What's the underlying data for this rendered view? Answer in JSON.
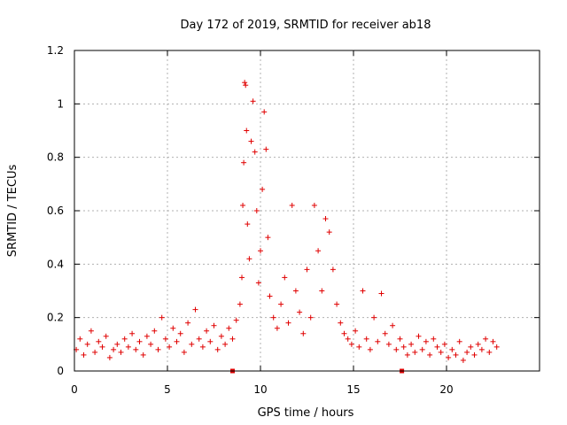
{
  "chart_data": {
    "type": "scatter",
    "title": "Day 172 of 2019, SRMTID for receiver ab18",
    "xlabel": "GPS time / hours",
    "ylabel": "SRMTID / TECUs",
    "xlim": [
      0,
      25
    ],
    "ylim": [
      0,
      1.2
    ],
    "xticks": [
      0,
      5,
      10,
      15,
      20
    ],
    "yticks": [
      0,
      0.2,
      0.4,
      0.6,
      0.8,
      1,
      1.2
    ],
    "xtick_labels": [
      "0",
      "5",
      "10",
      "15",
      "20"
    ],
    "ytick_labels": [
      "0",
      "0.2",
      "0.4",
      "0.6",
      "0.8",
      "1",
      "1.2"
    ],
    "grid": true,
    "marker": "+",
    "color": "#e00000",
    "baseline_squares_x": [
      8.5,
      17.6
    ],
    "series": [
      {
        "name": "SRMTID",
        "points": [
          [
            0.1,
            0.08
          ],
          [
            0.3,
            0.12
          ],
          [
            0.5,
            0.06
          ],
          [
            0.7,
            0.1
          ],
          [
            0.9,
            0.15
          ],
          [
            1.1,
            0.07
          ],
          [
            1.3,
            0.11
          ],
          [
            1.5,
            0.09
          ],
          [
            1.7,
            0.13
          ],
          [
            1.9,
            0.05
          ],
          [
            2.1,
            0.08
          ],
          [
            2.3,
            0.1
          ],
          [
            2.5,
            0.07
          ],
          [
            2.7,
            0.12
          ],
          [
            2.9,
            0.09
          ],
          [
            3.1,
            0.14
          ],
          [
            3.3,
            0.08
          ],
          [
            3.5,
            0.11
          ],
          [
            3.7,
            0.06
          ],
          [
            3.9,
            0.13
          ],
          [
            4.1,
            0.1
          ],
          [
            4.3,
            0.15
          ],
          [
            4.5,
            0.08
          ],
          [
            4.7,
            0.2
          ],
          [
            4.9,
            0.12
          ],
          [
            5.1,
            0.09
          ],
          [
            5.3,
            0.16
          ],
          [
            5.5,
            0.11
          ],
          [
            5.7,
            0.14
          ],
          [
            5.9,
            0.07
          ],
          [
            6.1,
            0.18
          ],
          [
            6.3,
            0.1
          ],
          [
            6.5,
            0.23
          ],
          [
            6.7,
            0.12
          ],
          [
            6.9,
            0.09
          ],
          [
            7.1,
            0.15
          ],
          [
            7.3,
            0.11
          ],
          [
            7.5,
            0.17
          ],
          [
            7.7,
            0.08
          ],
          [
            7.9,
            0.13
          ],
          [
            8.1,
            0.1
          ],
          [
            8.3,
            0.16
          ],
          [
            8.5,
            0.12
          ],
          [
            8.7,
            0.19
          ],
          [
            8.9,
            0.25
          ],
          [
            9.0,
            0.35
          ],
          [
            9.05,
            0.62
          ],
          [
            9.1,
            0.78
          ],
          [
            9.15,
            1.08
          ],
          [
            9.2,
            1.07
          ],
          [
            9.25,
            0.9
          ],
          [
            9.3,
            0.55
          ],
          [
            9.4,
            0.42
          ],
          [
            9.5,
            0.86
          ],
          [
            9.6,
            1.01
          ],
          [
            9.7,
            0.82
          ],
          [
            9.8,
            0.6
          ],
          [
            9.9,
            0.33
          ],
          [
            10.0,
            0.45
          ],
          [
            10.1,
            0.68
          ],
          [
            10.2,
            0.97
          ],
          [
            10.3,
            0.83
          ],
          [
            10.4,
            0.5
          ],
          [
            10.5,
            0.28
          ],
          [
            10.7,
            0.2
          ],
          [
            10.9,
            0.16
          ],
          [
            11.1,
            0.25
          ],
          [
            11.3,
            0.35
          ],
          [
            11.5,
            0.18
          ],
          [
            11.7,
            0.62
          ],
          [
            11.9,
            0.3
          ],
          [
            12.1,
            0.22
          ],
          [
            12.3,
            0.14
          ],
          [
            12.5,
            0.38
          ],
          [
            12.7,
            0.2
          ],
          [
            12.9,
            0.62
          ],
          [
            13.1,
            0.45
          ],
          [
            13.3,
            0.3
          ],
          [
            13.5,
            0.57
          ],
          [
            13.7,
            0.52
          ],
          [
            13.9,
            0.38
          ],
          [
            14.1,
            0.25
          ],
          [
            14.3,
            0.18
          ],
          [
            14.5,
            0.14
          ],
          [
            14.7,
            0.12
          ],
          [
            14.9,
            0.1
          ],
          [
            15.1,
            0.15
          ],
          [
            15.3,
            0.09
          ],
          [
            15.5,
            0.3
          ],
          [
            15.7,
            0.12
          ],
          [
            15.9,
            0.08
          ],
          [
            16.1,
            0.2
          ],
          [
            16.3,
            0.11
          ],
          [
            16.5,
            0.29
          ],
          [
            16.7,
            0.14
          ],
          [
            16.9,
            0.1
          ],
          [
            17.1,
            0.17
          ],
          [
            17.3,
            0.08
          ],
          [
            17.5,
            0.12
          ],
          [
            17.7,
            0.09
          ],
          [
            17.9,
            0.06
          ],
          [
            18.1,
            0.1
          ],
          [
            18.3,
            0.07
          ],
          [
            18.5,
            0.13
          ],
          [
            18.7,
            0.08
          ],
          [
            18.9,
            0.11
          ],
          [
            19.1,
            0.06
          ],
          [
            19.3,
            0.12
          ],
          [
            19.5,
            0.09
          ],
          [
            19.7,
            0.07
          ],
          [
            19.9,
            0.1
          ],
          [
            20.1,
            0.05
          ],
          [
            20.3,
            0.08
          ],
          [
            20.5,
            0.06
          ],
          [
            20.7,
            0.11
          ],
          [
            20.9,
            0.04
          ],
          [
            21.1,
            0.07
          ],
          [
            21.3,
            0.09
          ],
          [
            21.5,
            0.06
          ],
          [
            21.7,
            0.1
          ],
          [
            21.9,
            0.08
          ],
          [
            22.1,
            0.12
          ],
          [
            22.3,
            0.07
          ],
          [
            22.5,
            0.11
          ],
          [
            22.7,
            0.09
          ]
        ]
      }
    ]
  }
}
